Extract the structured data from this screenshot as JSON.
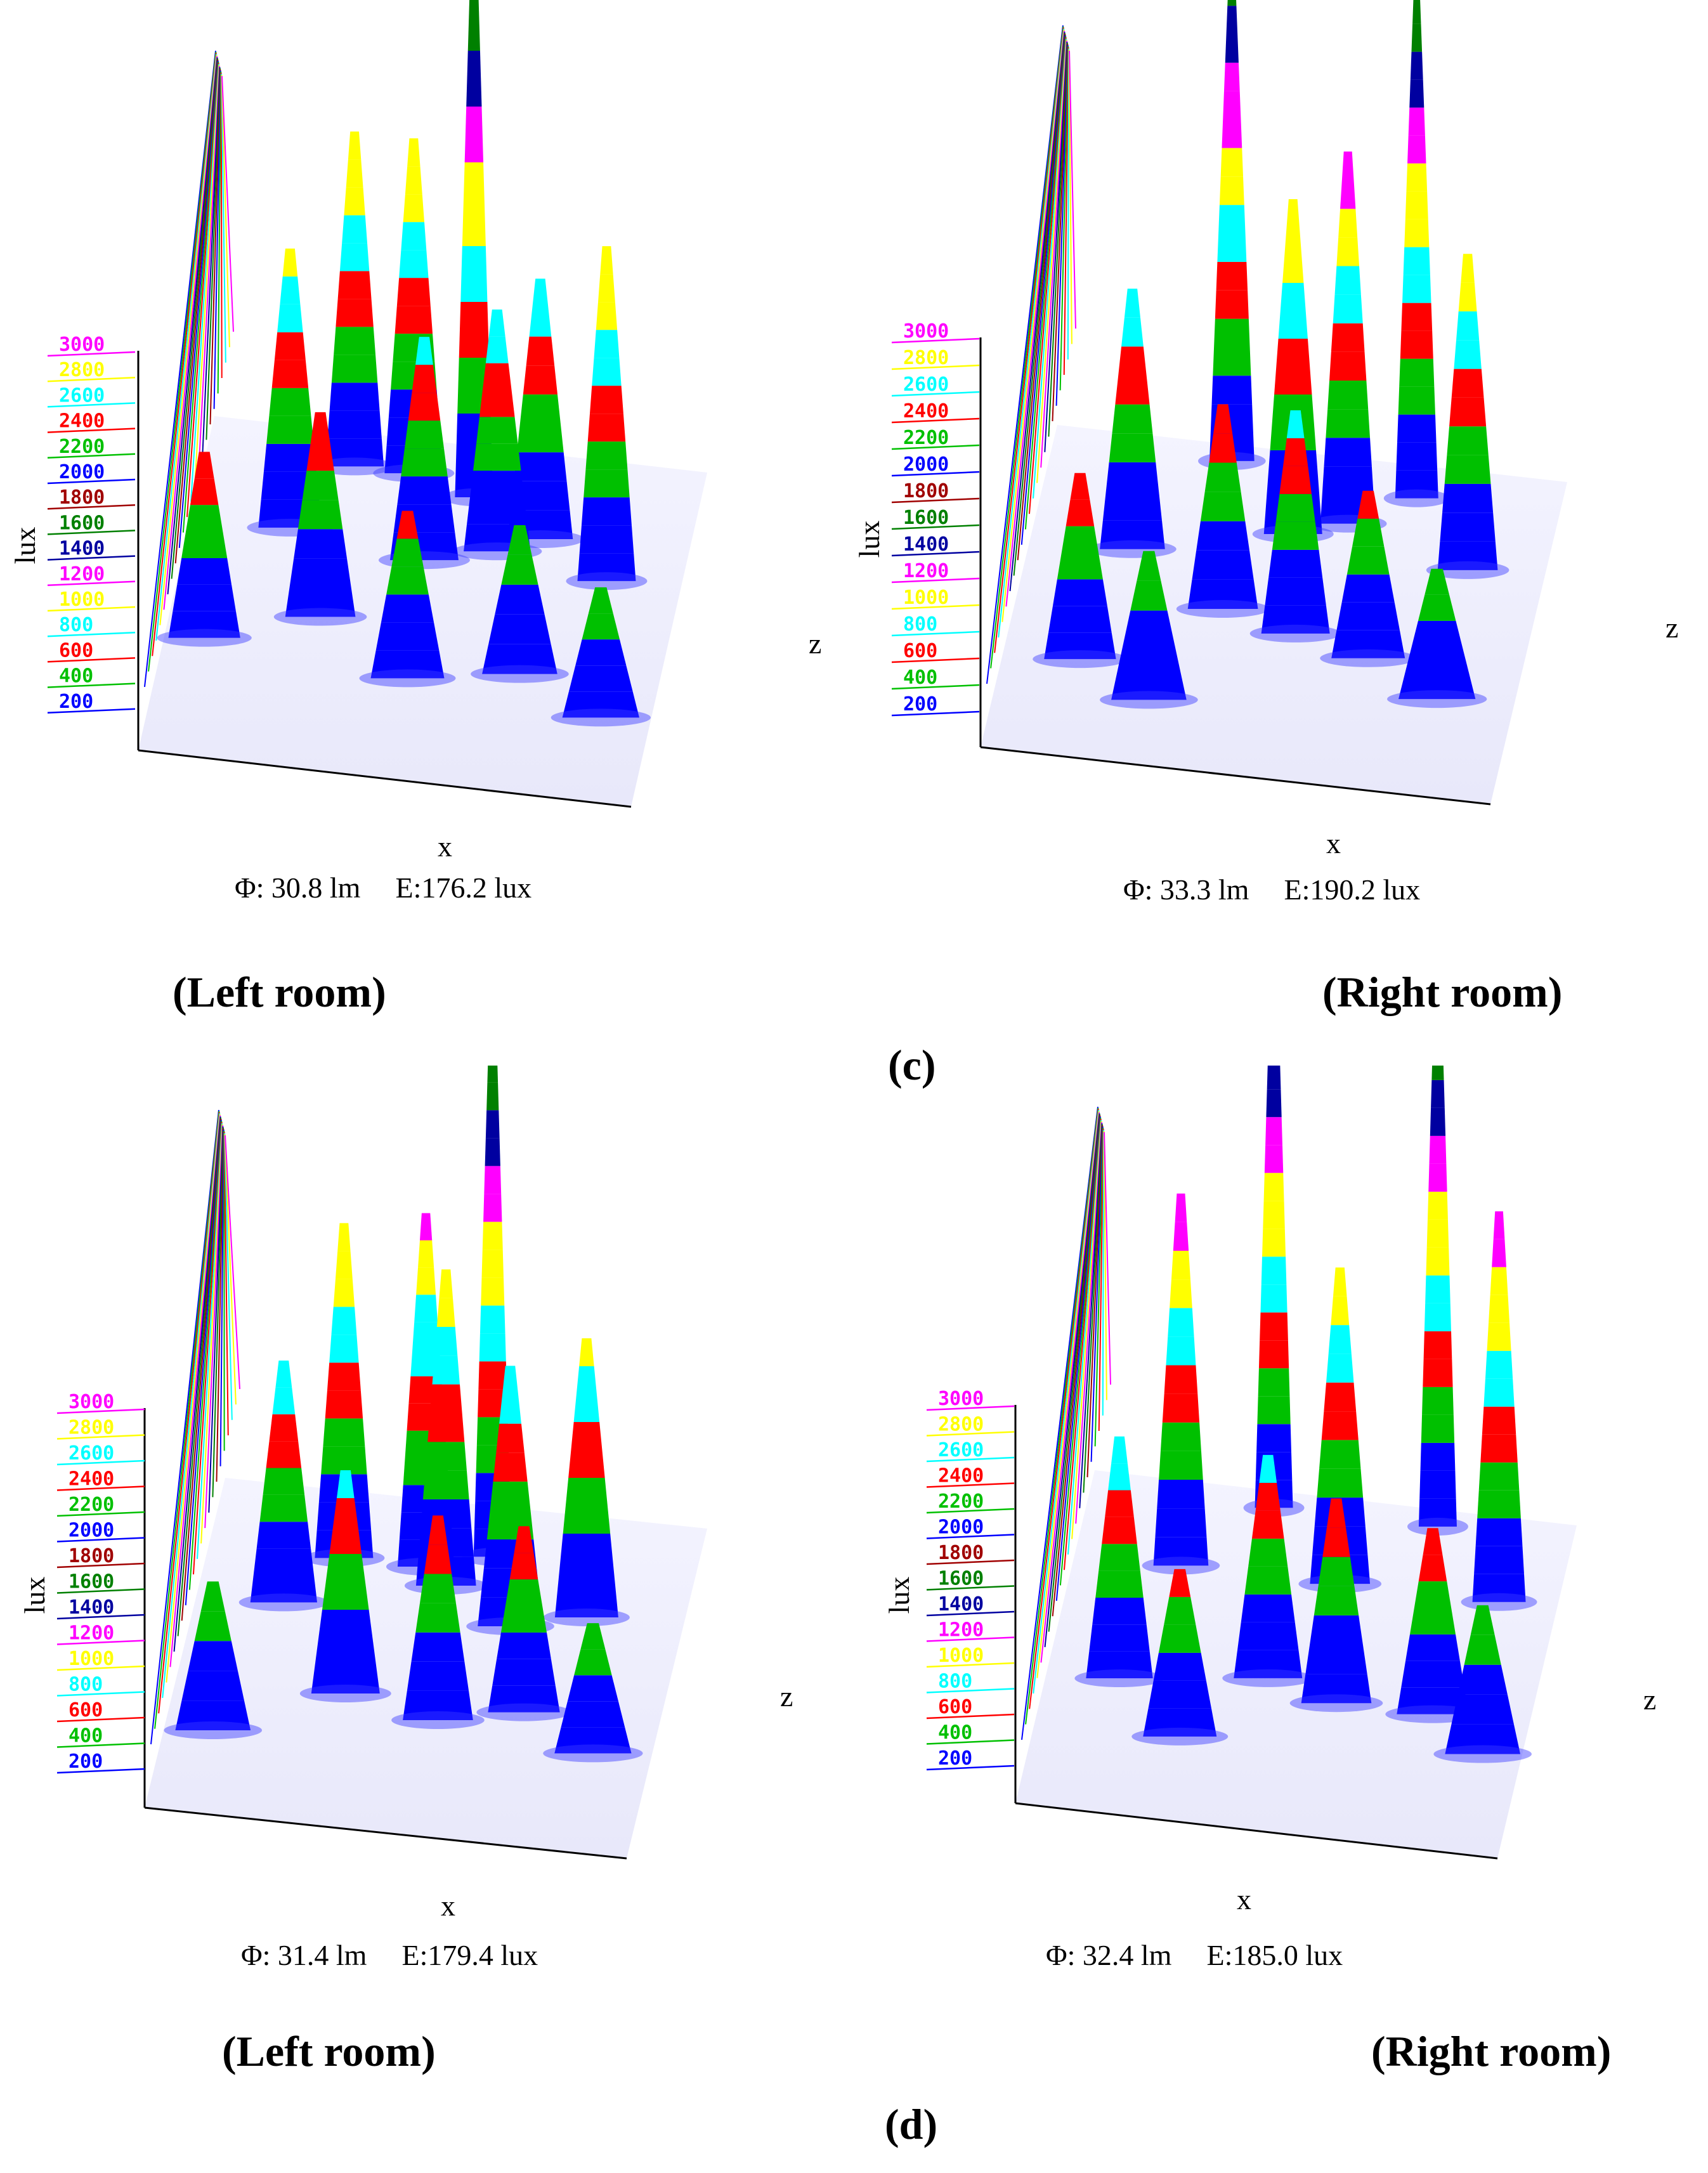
{
  "figure": {
    "colors": {
      "contour": [
        "#0000ff",
        "#00c000",
        "#ff0000",
        "#00ffff",
        "#ffff00",
        "#ff00ff",
        "#0000a0",
        "#008000",
        "#a00000"
      ]
    },
    "groups": [
      {
        "label": "(c)",
        "label_letter": "c"
      },
      {
        "label": "(d)",
        "label_letter": "d"
      }
    ]
  },
  "chart_data": [
    {
      "type": "surface-3d",
      "group": "c",
      "room_label": "Left room",
      "ylabel": "lux",
      "xlabel": "x",
      "zlabel": "z",
      "yticks": [
        "3000",
        "2800",
        "2600",
        "2400",
        "2200",
        "2000",
        "1800",
        "1600",
        "1400",
        "1200",
        "1000",
        "800",
        "600",
        "400",
        "200"
      ],
      "ylim": [
        0,
        3000
      ],
      "flux_text": "Φ: 30.8  lm",
      "flux": 30.8,
      "flux_unit": "lm",
      "illuminance_text": "E:176.2 lux",
      "illuminance": 176.2,
      "illuminance_unit": "lux",
      "peaks": [
        {
          "x": 0.55,
          "z": 0.15,
          "lux": 3000
        },
        {
          "x": 0.3,
          "z": 0.1,
          "lux": 1800
        },
        {
          "x": 0.42,
          "z": 0.1,
          "lux": 1800
        },
        {
          "x": 0.85,
          "z": 0.35,
          "lux": 1800
        },
        {
          "x": 0.2,
          "z": 0.3,
          "lux": 1500
        },
        {
          "x": 0.48,
          "z": 0.35,
          "lux": 1200
        },
        {
          "x": 0.62,
          "z": 0.3,
          "lux": 1300
        },
        {
          "x": 0.7,
          "z": 0.25,
          "lux": 1400
        },
        {
          "x": 0.08,
          "z": 0.65,
          "lux": 1000
        },
        {
          "x": 0.3,
          "z": 0.55,
          "lux": 1100
        },
        {
          "x": 0.5,
          "z": 0.7,
          "lux": 900
        },
        {
          "x": 0.72,
          "z": 0.65,
          "lux": 800
        },
        {
          "x": 0.9,
          "z": 0.75,
          "lux": 700
        }
      ]
    },
    {
      "type": "surface-3d",
      "group": "c",
      "room_label": "Right room",
      "ylabel": "lux",
      "xlabel": "x",
      "zlabel": "z",
      "yticks": [
        "3000",
        "2800",
        "2600",
        "2400",
        "2200",
        "2000",
        "1800",
        "1600",
        "1400",
        "1200",
        "1000",
        "800",
        "600",
        "400",
        "200"
      ],
      "ylim": [
        0,
        3000
      ],
      "flux_text": "Φ: 33.3  lm",
      "flux": 33.3,
      "flux_unit": "lm",
      "illuminance_text": "E:190.2 lux",
      "illuminance": 190.2,
      "illuminance_unit": "lux",
      "peaks": [
        {
          "x": 0.35,
          "z": 0.05,
          "lux": 2600
        },
        {
          "x": 0.72,
          "z": 0.1,
          "lux": 2700
        },
        {
          "x": 0.6,
          "z": 0.2,
          "lux": 2000
        },
        {
          "x": 0.5,
          "z": 0.25,
          "lux": 1800
        },
        {
          "x": 0.85,
          "z": 0.3,
          "lux": 1700
        },
        {
          "x": 0.2,
          "z": 0.35,
          "lux": 1400
        },
        {
          "x": 0.4,
          "z": 0.5,
          "lux": 1100
        },
        {
          "x": 0.55,
          "z": 0.55,
          "lux": 1200
        },
        {
          "x": 0.7,
          "z": 0.6,
          "lux": 900
        },
        {
          "x": 0.15,
          "z": 0.7,
          "lux": 1000
        },
        {
          "x": 0.3,
          "z": 0.8,
          "lux": 800
        },
        {
          "x": 0.85,
          "z": 0.7,
          "lux": 700
        }
      ]
    },
    {
      "type": "surface-3d",
      "group": "d",
      "room_label": "Left room",
      "ylabel": "lux",
      "xlabel": "x",
      "zlabel": "z",
      "yticks": [
        "3000",
        "2800",
        "2600",
        "2400",
        "2200",
        "2000",
        "1800",
        "1600",
        "1400",
        "1200",
        "1000",
        "800",
        "600",
        "400",
        "200"
      ],
      "ylim": [
        0,
        3000
      ],
      "flux_text": "Φ: 31.4  lm",
      "flux": 31.4,
      "flux_unit": "lm",
      "illuminance_text": "E:179.4 lux",
      "illuminance": 179.4,
      "illuminance_unit": "lux",
      "peaks": [
        {
          "x": 0.58,
          "z": 0.15,
          "lux": 3000
        },
        {
          "x": 0.28,
          "z": 0.2,
          "lux": 1800
        },
        {
          "x": 0.45,
          "z": 0.2,
          "lux": 1900
        },
        {
          "x": 0.5,
          "z": 0.25,
          "lux": 1700
        },
        {
          "x": 0.8,
          "z": 0.3,
          "lux": 1500
        },
        {
          "x": 0.18,
          "z": 0.35,
          "lux": 1300
        },
        {
          "x": 0.65,
          "z": 0.35,
          "lux": 1400
        },
        {
          "x": 0.35,
          "z": 0.6,
          "lux": 1200
        },
        {
          "x": 0.55,
          "z": 0.65,
          "lux": 1100
        },
        {
          "x": 0.72,
          "z": 0.6,
          "lux": 1000
        },
        {
          "x": 0.1,
          "z": 0.75,
          "lux": 800
        },
        {
          "x": 0.88,
          "z": 0.7,
          "lux": 700
        }
      ]
    },
    {
      "type": "surface-3d",
      "group": "d",
      "room_label": "Right room",
      "ylabel": "lux",
      "xlabel": "x",
      "zlabel": "z",
      "yticks": [
        "3000",
        "2800",
        "2600",
        "2400",
        "2200",
        "2000",
        "1800",
        "1600",
        "1400",
        "1200",
        "1000",
        "800",
        "600",
        "400",
        "200"
      ],
      "ylim": [
        0,
        3000
      ],
      "flux_text": "Φ: 32.4  lm",
      "flux": 32.4,
      "flux_unit": "lm",
      "illuminance_text": "E:185.0 lux",
      "illuminance": 185.0,
      "illuminance_unit": "lux",
      "peaks": [
        {
          "x": 0.38,
          "z": 0.05,
          "lux": 3000
        },
        {
          "x": 0.72,
          "z": 0.05,
          "lux": 3000
        },
        {
          "x": 0.22,
          "z": 0.25,
          "lux": 2000
        },
        {
          "x": 0.55,
          "z": 0.25,
          "lux": 1700
        },
        {
          "x": 0.88,
          "z": 0.25,
          "lux": 2100
        },
        {
          "x": 0.45,
          "z": 0.55,
          "lux": 1200
        },
        {
          "x": 0.6,
          "z": 0.6,
          "lux": 1100
        },
        {
          "x": 0.15,
          "z": 0.6,
          "lux": 1300
        },
        {
          "x": 0.8,
          "z": 0.6,
          "lux": 1000
        },
        {
          "x": 0.3,
          "z": 0.75,
          "lux": 900
        },
        {
          "x": 0.92,
          "z": 0.7,
          "lux": 800
        }
      ]
    }
  ]
}
